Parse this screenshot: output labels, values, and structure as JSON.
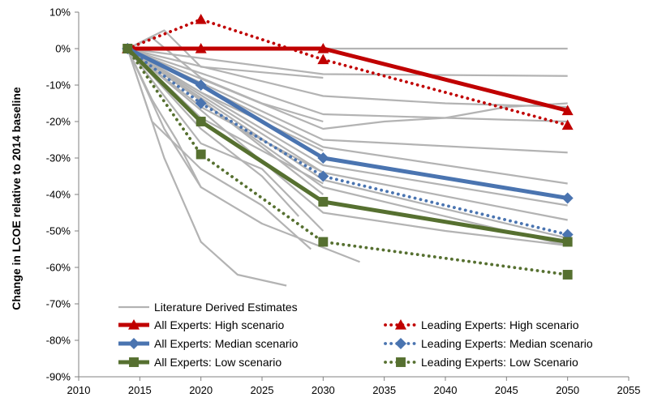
{
  "chart_data": {
    "type": "line",
    "title": "",
    "xlabel": "",
    "ylabel": "Change in LCOE relative to 2014 baseline",
    "xlim": [
      2010,
      2055
    ],
    "ylim": [
      -90,
      10
    ],
    "x_ticks": [
      "2010",
      "2015",
      "2020",
      "2025",
      "2030",
      "2035",
      "2040",
      "2045",
      "2050",
      "2055"
    ],
    "y_ticks": [
      "10%",
      "0%",
      "-10%",
      "-20%",
      "-30%",
      "-40%",
      "-50%",
      "-60%",
      "-70%",
      "-80%",
      "-90%"
    ],
    "grid": false,
    "legend_position": "bottom-center",
    "colors": {
      "red": "#c00000",
      "blue": "#4a74b0",
      "green": "#567030",
      "gray": "#b3b3b3"
    },
    "series": [
      {
        "name": "All Experts: High scenario",
        "style": "solid",
        "marker": "triangle",
        "color": "#c00000",
        "x": [
          2014,
          2020,
          2030,
          2050
        ],
        "y": [
          0,
          0,
          0,
          -17
        ]
      },
      {
        "name": "All Experts: Median scenario",
        "style": "solid",
        "marker": "diamond",
        "color": "#4a74b0",
        "x": [
          2014,
          2020,
          2030,
          2050
        ],
        "y": [
          0,
          -10,
          -30,
          -41
        ]
      },
      {
        "name": "All Experts: Low scenario",
        "style": "solid",
        "marker": "square",
        "color": "#567030",
        "x": [
          2014,
          2020,
          2030,
          2050
        ],
        "y": [
          0,
          -20,
          -42,
          -53
        ]
      },
      {
        "name": "Leading Experts: High scenario",
        "style": "dotted",
        "marker": "triangle",
        "color": "#c00000",
        "x": [
          2014,
          2020,
          2030,
          2050
        ],
        "y": [
          0,
          8,
          -3,
          -21
        ]
      },
      {
        "name": "Leading Experts: Median scenario",
        "style": "dotted",
        "marker": "diamond",
        "color": "#4a74b0",
        "x": [
          2014,
          2020,
          2030,
          2050
        ],
        "y": [
          0,
          -15,
          -35,
          -51
        ]
      },
      {
        "name": "Leading Experts: Low Scenario",
        "style": "dotted",
        "marker": "square",
        "color": "#567030",
        "x": [
          2014,
          2020,
          2030,
          2050
        ],
        "y": [
          0,
          -29,
          -53,
          -62
        ]
      }
    ],
    "literature": {
      "name": "Literature Derived Estimates",
      "color": "#b3b3b3",
      "lines": [
        {
          "x": [
            2014,
            2050
          ],
          "y": [
            0,
            0
          ]
        },
        {
          "x": [
            2014,
            2030,
            2050
          ],
          "y": [
            0,
            -7,
            -7.5
          ]
        },
        {
          "x": [
            2014,
            2017,
            2020,
            2030
          ],
          "y": [
            0,
            5,
            -5,
            -8
          ]
        },
        {
          "x": [
            2014,
            2016,
            2020,
            2025,
            2030
          ],
          "y": [
            0,
            3,
            -8,
            -15,
            -20
          ]
        },
        {
          "x": [
            2014,
            2030,
            2035,
            2040,
            2045,
            2050
          ],
          "y": [
            0,
            -22,
            -20,
            -19,
            -16,
            -15
          ]
        },
        {
          "x": [
            2014,
            2030,
            2040,
            2050
          ],
          "y": [
            0,
            -13,
            -15,
            -16
          ]
        },
        {
          "x": [
            2014,
            2030,
            2050
          ],
          "y": [
            0,
            -18,
            -20
          ]
        },
        {
          "x": [
            2014,
            2030,
            2050
          ],
          "y": [
            0,
            -25,
            -28.5
          ]
        },
        {
          "x": [
            2014,
            2030,
            2050
          ],
          "y": [
            0,
            -27,
            -37
          ]
        },
        {
          "x": [
            2014,
            2030,
            2050
          ],
          "y": [
            0,
            -32,
            -43
          ]
        },
        {
          "x": [
            2014,
            2030,
            2050
          ],
          "y": [
            0,
            -34,
            -47
          ]
        },
        {
          "x": [
            2014,
            2030,
            2050
          ],
          "y": [
            0,
            -36,
            -52
          ]
        },
        {
          "x": [
            2014,
            2030,
            2050
          ],
          "y": [
            0,
            -38,
            -54
          ]
        },
        {
          "x": [
            2014,
            2030,
            2040,
            2050
          ],
          "y": [
            0,
            -45,
            -50,
            -54
          ]
        },
        {
          "x": [
            2014,
            2017,
            2020,
            2023,
            2027
          ],
          "y": [
            0,
            -30,
            -53,
            -62,
            -65
          ]
        },
        {
          "x": [
            2014,
            2017,
            2020,
            2025,
            2033
          ],
          "y": [
            0,
            -22,
            -38,
            -48,
            -58.5
          ]
        },
        {
          "x": [
            2014,
            2016,
            2020,
            2025,
            2029
          ],
          "y": [
            0,
            -20,
            -33,
            -43,
            -55
          ]
        },
        {
          "x": [
            2014,
            2020,
            2025,
            2028
          ],
          "y": [
            0,
            -22,
            -35,
            -46
          ]
        },
        {
          "x": [
            2014,
            2020,
            2025,
            2030
          ],
          "y": [
            0,
            -26,
            -33,
            -50
          ]
        },
        {
          "x": [
            2014,
            2020,
            2030
          ],
          "y": [
            0,
            -16,
            -34
          ]
        },
        {
          "x": [
            2014,
            2020,
            2030
          ],
          "y": [
            0,
            -12,
            -28
          ]
        },
        {
          "x": [
            2014,
            2020,
            2030
          ],
          "y": [
            0,
            -14,
            -40
          ]
        },
        {
          "x": [
            2014,
            2020,
            2030
          ],
          "y": [
            0,
            -19,
            -37
          ]
        },
        {
          "x": [
            2014,
            2016,
            2018,
            2020
          ],
          "y": [
            0,
            -14,
            -25,
            -38
          ]
        }
      ]
    }
  }
}
